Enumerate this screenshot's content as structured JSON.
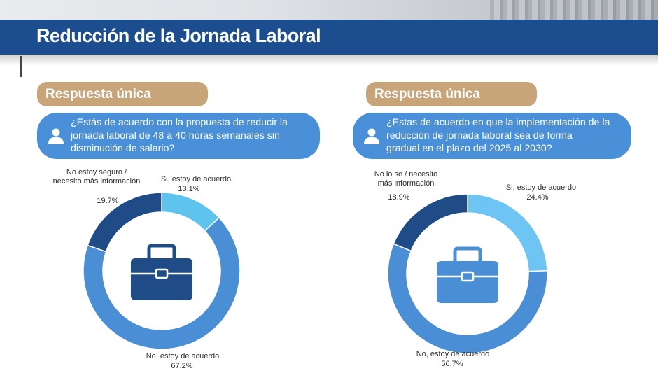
{
  "page": {
    "title": "Reducción de la Jornada Laboral"
  },
  "panels": [
    {
      "badge": "Respuesta única",
      "question_lines": [
        "¿Estás de acuerdo con la propuesta de reducir la",
        "jornada laboral de 48 a 40 horas semanales sin",
        "disminución de salario?"
      ]
    },
    {
      "badge": "Respuesta única",
      "question_lines": [
        "¿Estas de acuerdo en que la implementación de la",
        "reducción de jornada laboral sea de forma",
        "gradual en el plazo del 2025 al 2030?"
      ]
    }
  ],
  "chart_data": [
    {
      "type": "pie",
      "variant": "donut",
      "slices": [
        {
          "label_lines": [
            "Si, estoy de acuerdo"
          ],
          "value": 13.1,
          "value_text": "13.1%",
          "color": "#5ec4ee"
        },
        {
          "label_lines": [
            "No, estoy de acuerdo"
          ],
          "value": 67.2,
          "value_text": "67.2%",
          "color": "#4a8fd6"
        },
        {
          "label_lines": [
            "No estoy seguro /",
            "necesito más información"
          ],
          "value": 19.7,
          "value_text": "19.7%",
          "color": "#1f4c87"
        }
      ],
      "center_icon": "briefcase-icon",
      "icon_color": "#1f4c87"
    },
    {
      "type": "pie",
      "variant": "donut",
      "slices": [
        {
          "label_lines": [
            "Si, estoy de acuerdo"
          ],
          "value": 24.4,
          "value_text": "24.4%",
          "color": "#6ec4f2"
        },
        {
          "label_lines": [
            "No, estoy de acuerdo"
          ],
          "value": 56.7,
          "value_text": "56.7%",
          "color": "#4a8fd6"
        },
        {
          "label_lines": [
            "No lo se / necesito",
            "más información"
          ],
          "value": 18.9,
          "value_text": "18.9%",
          "color": "#1f4c87"
        }
      ],
      "center_icon": "briefcase-icon",
      "icon_color": "#4a8fd6"
    }
  ]
}
